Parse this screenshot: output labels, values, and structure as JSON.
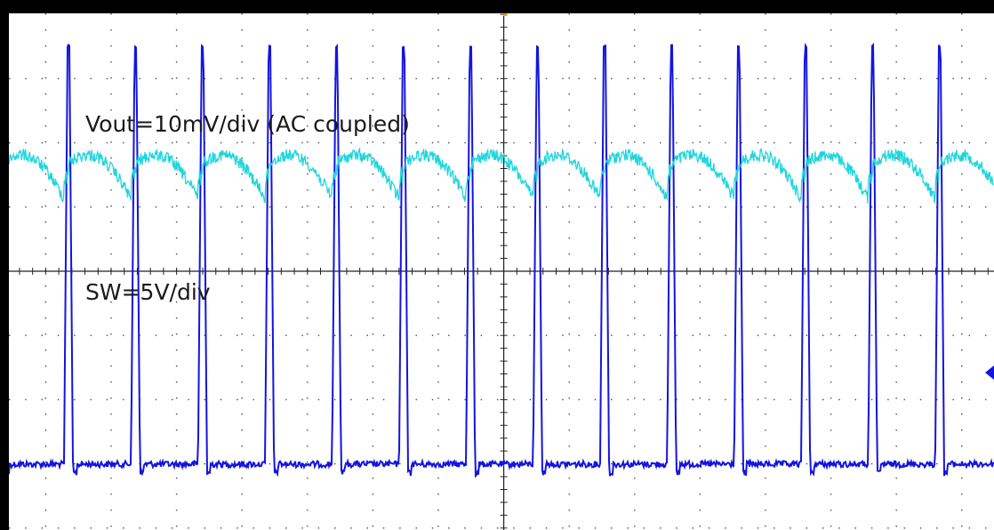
{
  "chart_data": {
    "type": "line",
    "title": "",
    "xlabel": "",
    "ylabel": "",
    "grid": true,
    "x_divisions": 14,
    "y_divisions": 8,
    "series": [
      {
        "label": "Vout=10mV/div (AC coupled)",
        "color": "#1fd6dc",
        "waveform": "ripple",
        "periods_visible": 14.7,
        "volts_per_div": 0.01,
        "peak_to_peak_div": 1.1
      },
      {
        "label": "SW=5V/div",
        "color": "#1414e0",
        "waveform": "pulse",
        "periods_visible": 14.7,
        "volts_per_div": 5,
        "high_div": 4.8,
        "duty_cycle": 0.08
      }
    ]
  }
}
